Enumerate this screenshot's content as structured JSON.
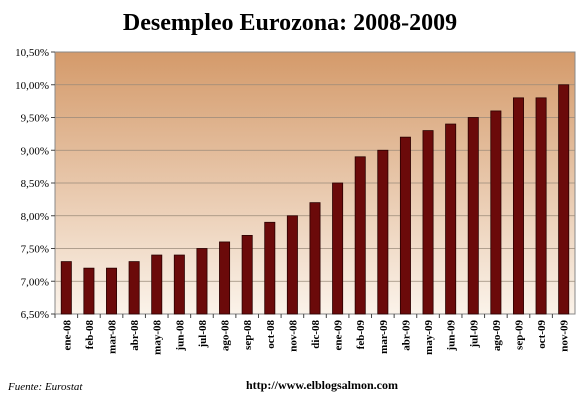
{
  "chart_data": {
    "type": "bar",
    "title": "Desempleo Eurozona: 2008-2009",
    "categories": [
      "ene-08",
      "feb-08",
      "mar-08",
      "abr-08",
      "may-08",
      "jun-08",
      "jul-08",
      "ago-08",
      "sep-08",
      "oct-08",
      "nov-08",
      "dic-08",
      "ene-09",
      "feb-09",
      "mar-09",
      "abr-09",
      "may-09",
      "jun-09",
      "jul-09",
      "ago-09",
      "sep-09",
      "oct-09",
      "nov-09"
    ],
    "values": [
      7.3,
      7.2,
      7.2,
      7.3,
      7.4,
      7.4,
      7.5,
      7.6,
      7.7,
      7.9,
      8.0,
      8.2,
      8.5,
      8.9,
      9.0,
      9.2,
      9.3,
      9.4,
      9.5,
      9.6,
      9.8,
      9.8,
      10.0
    ],
    "ylim": [
      6.5,
      10.5
    ],
    "yticks": [
      6.5,
      7.0,
      7.5,
      8.0,
      8.5,
      9.0,
      9.5,
      10.0,
      10.5
    ],
    "ytick_labels": [
      "6,50%",
      "7,00%",
      "7,50%",
      "8,00%",
      "8,50%",
      "9,00%",
      "9,50%",
      "10,00%",
      "10,50%"
    ],
    "xlabel": "",
    "ylabel": "",
    "grid": true,
    "colors": {
      "bar": "#6b0a0a",
      "bar_edge": "#2a0000",
      "bg_top": "#d49a6a",
      "bg_bottom": "#fbf3ea"
    }
  },
  "footer": {
    "source": "Fuente: Eurostat",
    "url": "http://www.elblogsalmon.com"
  }
}
